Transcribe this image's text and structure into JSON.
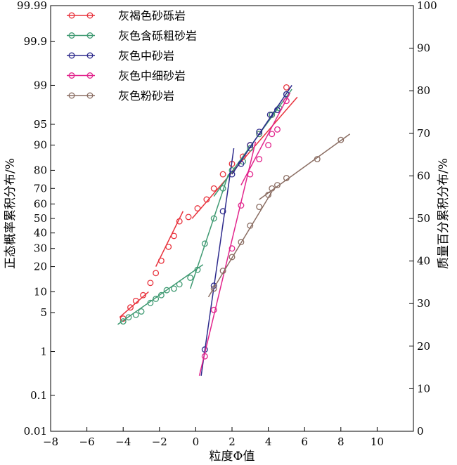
{
  "chart_data": {
    "type": "scatter",
    "xlabel": "粒度Φ值",
    "ylabel_left": "正态概率累积分布/%",
    "ylabel_right": "质量百分累积分布/%",
    "xlim": [
      -8,
      12
    ],
    "x_ticks": [
      -8,
      -6,
      -4,
      -2,
      0,
      2,
      4,
      6,
      8,
      10
    ],
    "left_axis_scale": "normal-probability",
    "left_ticks": [
      0.01,
      0.1,
      1,
      5,
      10,
      20,
      30,
      40,
      50,
      60,
      70,
      80,
      90,
      95,
      99,
      99.9,
      99.99
    ],
    "left_tick_labels": [
      "0.01",
      "0.1",
      "1",
      "5",
      "10",
      "20",
      "30",
      "40",
      "50",
      "60",
      "70",
      "80",
      "90",
      "95",
      "99",
      "99.9",
      "99.99"
    ],
    "right_ylim": [
      0,
      100
    ],
    "right_ticks": [
      0,
      10,
      20,
      30,
      40,
      50,
      60,
      70,
      80,
      90,
      100
    ],
    "grid": false,
    "legend_position": "top-left",
    "series": [
      {
        "name": "灰褐色砂砾岩",
        "color": "#e8323c",
        "points": [
          [
            -4.0,
            4.0
          ],
          [
            -3.6,
            6
          ],
          [
            -3.3,
            7.5
          ],
          [
            -2.9,
            9
          ],
          [
            -2.5,
            13
          ],
          [
            -2.2,
            17
          ],
          [
            -1.9,
            23
          ],
          [
            -1.5,
            31
          ],
          [
            -1.2,
            38
          ],
          [
            -0.9,
            48
          ],
          [
            -0.4,
            51
          ],
          [
            0.1,
            57
          ],
          [
            0.6,
            63
          ],
          [
            1.0,
            70
          ],
          [
            1.5,
            78
          ],
          [
            2.0,
            83
          ],
          [
            2.6,
            86
          ],
          [
            3.0,
            90
          ],
          [
            3.5,
            93
          ],
          [
            4.2,
            96.5
          ],
          [
            5.0,
            98.9
          ]
        ],
        "fit_lines": [
          [
            [
              -4.2,
              4.2
            ],
            [
              -2.6,
              10
            ]
          ],
          [
            [
              -2.2,
              20
            ],
            [
              -0.7,
              55
            ]
          ],
          [
            [
              -0.2,
              50
            ],
            [
              5.6,
              98.3
            ]
          ]
        ]
      },
      {
        "name": "灰色含砾粗砂岩",
        "color": "#3f9a72",
        "points": [
          [
            -4.0,
            3.6
          ],
          [
            -3.7,
            4.2
          ],
          [
            -3.3,
            4.6
          ],
          [
            -3.0,
            5.2
          ],
          [
            -2.5,
            7
          ],
          [
            -2.2,
            8
          ],
          [
            -1.9,
            9
          ],
          [
            -1.6,
            10.5
          ],
          [
            -1.2,
            11
          ],
          [
            -0.9,
            12.5
          ],
          [
            -0.3,
            15
          ],
          [
            0.1,
            18.5
          ],
          [
            0.5,
            33
          ],
          [
            1.0,
            50
          ],
          [
            1.5,
            70
          ],
          [
            2.0,
            80
          ],
          [
            2.6,
            84
          ],
          [
            3.0,
            89
          ],
          [
            3.5,
            93
          ],
          [
            4.2,
            96.5
          ],
          [
            4.6,
            97.3
          ],
          [
            5.0,
            98.5
          ]
        ],
        "fit_lines": [
          [
            [
              -4.3,
              3.2
            ],
            [
              0.4,
              21
            ]
          ],
          [
            [
              -0.3,
              11
            ],
            [
              1.8,
              78
            ]
          ],
          [
            [
              1.0,
              65
            ],
            [
              5.3,
              98.8
            ]
          ]
        ]
      },
      {
        "name": "灰色中砂岩",
        "color": "#2d2a8c",
        "points": [
          [
            0.5,
            1.1
          ],
          [
            1.0,
            12
          ],
          [
            1.5,
            55
          ],
          [
            2.0,
            78
          ],
          [
            2.5,
            83
          ],
          [
            3.0,
            90
          ],
          [
            3.5,
            93.5
          ],
          [
            4.1,
            96.5
          ],
          [
            4.5,
            97.1
          ],
          [
            5.0,
            98.5
          ]
        ],
        "fit_lines": [
          [
            [
              0.3,
              0.3
            ],
            [
              2.1,
              89
            ]
          ],
          [
            [
              2.0,
              78
            ],
            [
              5.3,
              99
            ]
          ]
        ]
      },
      {
        "name": "灰色中细砂岩",
        "color": "#e2248c",
        "points": [
          [
            0.5,
            0.8
          ],
          [
            1.0,
            5.5
          ],
          [
            2.0,
            30
          ],
          [
            2.5,
            59
          ],
          [
            3.0,
            78
          ],
          [
            3.5,
            85
          ],
          [
            4.0,
            90
          ],
          [
            4.2,
            93
          ],
          [
            4.5,
            94
          ],
          [
            5.0,
            98
          ]
        ],
        "fit_lines": [
          [
            [
              0.2,
              0.3
            ],
            [
              3.3,
              91
            ]
          ],
          [
            [
              2.5,
              72
            ],
            [
              5.2,
              98.6
            ]
          ]
        ]
      },
      {
        "name": "灰色粉砂岩",
        "color": "#8a6d62",
        "points": [
          [
            1.0,
            11
          ],
          [
            1.5,
            18
          ],
          [
            2.0,
            25
          ],
          [
            2.5,
            34
          ],
          [
            3.0,
            45
          ],
          [
            3.5,
            58
          ],
          [
            4.0,
            66
          ],
          [
            4.2,
            70
          ],
          [
            4.5,
            72
          ],
          [
            5.0,
            76
          ],
          [
            6.7,
            85
          ],
          [
            8.0,
            91.5
          ]
        ],
        "fit_lines": [
          [
            [
              0.7,
              8.5
            ],
            [
              4.2,
              68
            ]
          ],
          [
            [
              3.5,
              63
            ],
            [
              8.5,
              93
            ]
          ]
        ]
      }
    ]
  }
}
